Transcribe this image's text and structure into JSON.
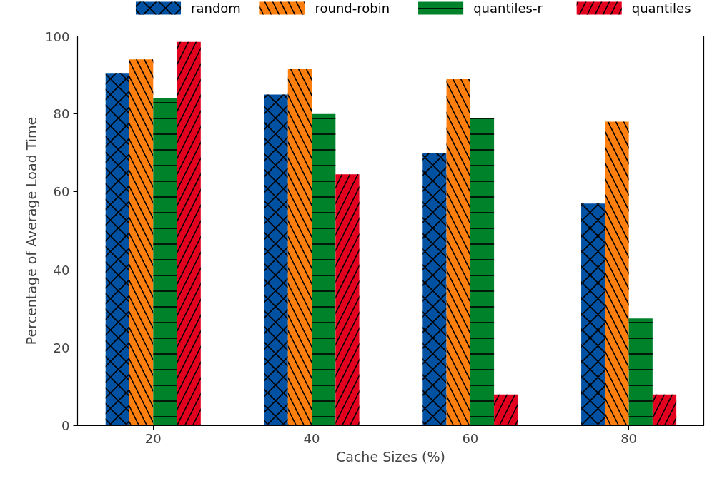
{
  "chart_data": {
    "type": "bar",
    "xlabel": "Cache Sizes (%)",
    "ylabel": "Percentage of Average Load Time",
    "categories": [
      "20",
      "40",
      "60",
      "80"
    ],
    "series": [
      {
        "name": "random",
        "color": "#0051a2",
        "values": [
          90.5,
          85,
          70,
          57
        ]
      },
      {
        "name": "round-robin",
        "color": "#ff7f0e",
        "values": [
          94,
          91.5,
          89,
          78
        ]
      },
      {
        "name": "quantiles-r",
        "color": "#00822b",
        "values": [
          84,
          80,
          79,
          27.5
        ]
      },
      {
        "name": "quantiles",
        "color": "#e3001f",
        "values": [
          98.5,
          64.5,
          8,
          8
        ]
      }
    ],
    "ylim": [
      0,
      100
    ],
    "yticks": [
      0,
      20,
      40,
      60,
      80,
      100
    ],
    "grid": false,
    "legend": "top"
  }
}
